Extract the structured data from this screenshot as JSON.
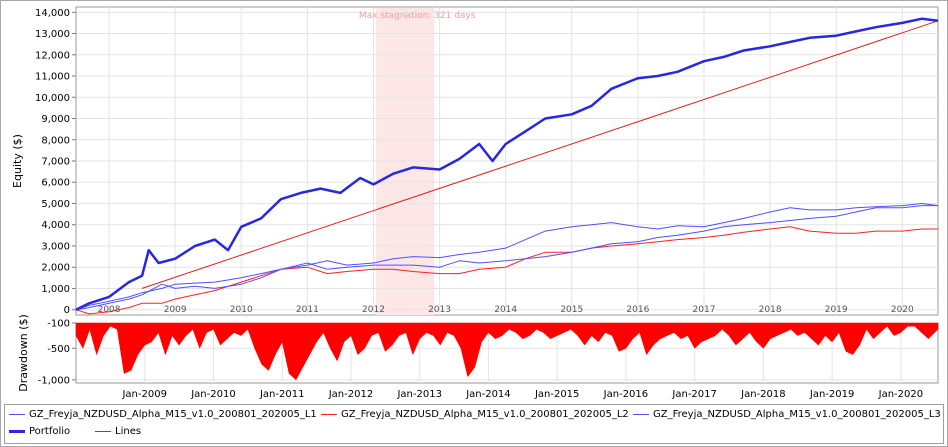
{
  "chart_data": [
    {
      "type": "line",
      "ylabel": "Equity ($)",
      "ylim": [
        -250,
        14250
      ],
      "yticks": [
        0,
        1000,
        2000,
        3000,
        4000,
        5000,
        6000,
        7000,
        8000,
        9000,
        10000,
        11000,
        12000,
        13000,
        14000
      ],
      "ytick_labels": [
        "0",
        "1,000",
        "2,000",
        "3,000",
        "4,000",
        "5,000",
        "6,000",
        "7,000",
        "8,000",
        "9,000",
        "10,000",
        "11,000",
        "12,000",
        "13,000",
        "14,000"
      ],
      "xlim": [
        2007.5,
        2020.54
      ],
      "xticks": [
        2008,
        2009,
        2010,
        2011,
        2012,
        2013,
        2014,
        2015,
        2016,
        2017,
        2018,
        2019,
        2020
      ],
      "xtick_labels": [
        "2008",
        "2009",
        "2010",
        "2011",
        "2012",
        "2013",
        "2014",
        "2015",
        "2016",
        "2017",
        "2018",
        "2019",
        "2020"
      ],
      "grid": true,
      "annotation": "Max stagnation: 321 days",
      "stagnation_range": [
        2012.04,
        2012.92
      ],
      "series": [
        {
          "name": "GZ_Freyja_NZDUSD_Alpha_M15_v1.0_200801_202005_L1",
          "color": "#5050ff",
          "width": 1,
          "x": [
            2007.5,
            2007.7,
            2008.0,
            2008.3,
            2008.5,
            2008.8,
            2009.0,
            2009.3,
            2009.6,
            2010.0,
            2010.3,
            2010.6,
            2011.0,
            2011.3,
            2011.6,
            2012.0,
            2012.3,
            2012.6,
            2013.0,
            2013.3,
            2013.6,
            2014.0,
            2014.3,
            2014.6,
            2015.0,
            2015.3,
            2015.6,
            2016.0,
            2016.3,
            2016.6,
            2017.0,
            2017.3,
            2017.6,
            2018.0,
            2018.3,
            2018.6,
            2019.0,
            2019.3,
            2019.6,
            2020.0,
            2020.3,
            2020.54
          ],
          "y": [
            0,
            200,
            400,
            600,
            800,
            1000,
            1200,
            1250,
            1300,
            1500,
            1700,
            1900,
            2100,
            2300,
            2100,
            2200,
            2400,
            2500,
            2450,
            2600,
            2700,
            2900,
            3300,
            3700,
            3900,
            4000,
            4100,
            3900,
            3800,
            3950,
            3900,
            4100,
            4300,
            4600,
            4800,
            4700,
            4700,
            4800,
            4850,
            4900,
            5000,
            4900
          ]
        },
        {
          "name": "GZ_Freyja_NZDUSD_Alpha_M15_v1.0_200801_202005_L2",
          "color": "#ff2020",
          "width": 1,
          "x": [
            2007.5,
            2007.7,
            2008.0,
            2008.3,
            2008.5,
            2008.8,
            2009.0,
            2009.3,
            2009.6,
            2010.0,
            2010.3,
            2010.6,
            2011.0,
            2011.3,
            2011.6,
            2012.0,
            2012.3,
            2012.6,
            2013.0,
            2013.3,
            2013.6,
            2014.0,
            2014.3,
            2014.6,
            2015.0,
            2015.3,
            2015.6,
            2016.0,
            2016.3,
            2016.6,
            2017.0,
            2017.3,
            2017.6,
            2018.0,
            2018.3,
            2018.6,
            2019.0,
            2019.3,
            2019.6,
            2020.0,
            2020.3,
            2020.54
          ],
          "y": [
            0,
            -200,
            -100,
            100,
            300,
            300,
            500,
            700,
            900,
            1300,
            1600,
            1900,
            2000,
            1700,
            1800,
            1900,
            1900,
            1800,
            1700,
            1700,
            1900,
            2000,
            2400,
            2700,
            2700,
            2900,
            3000,
            3100,
            3200,
            3300,
            3400,
            3500,
            3650,
            3800,
            3900,
            3700,
            3600,
            3600,
            3700,
            3700,
            3800,
            3800
          ]
        },
        {
          "name": "GZ_Freyja_NZDUSD_Alpha_M15_v1.0_200801_202005_L3",
          "color": "#5050ff",
          "width": 1,
          "x": [
            2007.5,
            2007.7,
            2008.0,
            2008.3,
            2008.5,
            2008.8,
            2009.0,
            2009.3,
            2009.6,
            2010.0,
            2010.3,
            2010.6,
            2011.0,
            2011.3,
            2011.6,
            2012.0,
            2012.3,
            2012.6,
            2013.0,
            2013.3,
            2013.6,
            2014.0,
            2014.3,
            2014.6,
            2015.0,
            2015.3,
            2015.6,
            2016.0,
            2016.3,
            2016.6,
            2017.0,
            2017.3,
            2017.6,
            2018.0,
            2018.3,
            2018.6,
            2019.0,
            2019.3,
            2019.6,
            2020.0,
            2020.3,
            2020.54
          ],
          "y": [
            0,
            100,
            300,
            500,
            700,
            1200,
            1000,
            1100,
            1000,
            1200,
            1500,
            1900,
            2200,
            1900,
            2000,
            2100,
            2100,
            2100,
            2000,
            2300,
            2200,
            2300,
            2400,
            2500,
            2700,
            2900,
            3100,
            3200,
            3400,
            3500,
            3700,
            3900,
            4000,
            4100,
            4200,
            4300,
            4400,
            4600,
            4800,
            4800,
            4900,
            4900
          ]
        },
        {
          "name": "Portfolio",
          "color": "#2828e0",
          "width": 2.5,
          "x": [
            2007.5,
            2007.7,
            2008.0,
            2008.3,
            2008.5,
            2008.6,
            2008.75,
            2009.0,
            2009.3,
            2009.6,
            2009.8,
            2010.0,
            2010.3,
            2010.6,
            2010.9,
            2011.2,
            2011.5,
            2011.8,
            2012.0,
            2012.3,
            2012.6,
            2013.0,
            2013.3,
            2013.6,
            2013.8,
            2014.0,
            2014.3,
            2014.6,
            2015.0,
            2015.3,
            2015.6,
            2016.0,
            2016.3,
            2016.6,
            2017.0,
            2017.3,
            2017.6,
            2018.0,
            2018.3,
            2018.6,
            2019.0,
            2019.3,
            2019.6,
            2020.0,
            2020.3,
            2020.54
          ],
          "y": [
            0,
            300,
            600,
            1300,
            1600,
            2800,
            2200,
            2400,
            3000,
            3300,
            2800,
            3900,
            4300,
            5200,
            5500,
            5700,
            5500,
            6200,
            5900,
            6400,
            6700,
            6600,
            7100,
            7800,
            7000,
            7800,
            8400,
            9000,
            9200,
            9600,
            10400,
            10900,
            11000,
            11200,
            11700,
            11900,
            12200,
            12400,
            12600,
            12800,
            12900,
            13100,
            13300,
            13500,
            13700,
            13600
          ]
        },
        {
          "name": "Lines",
          "color": "#e02020",
          "width": 1,
          "x": [
            2008.5,
            2020.54
          ],
          "y": [
            1000,
            13600
          ]
        }
      ]
    },
    {
      "type": "area",
      "ylabel": "Drawdown ($)",
      "ylim": [
        -1050,
        -100
      ],
      "yticks": [
        -1000,
        -500,
        -100
      ],
      "ytick_labels": [
        "-1,000",
        "-500",
        "-100"
      ],
      "xlim": [
        2008.0,
        2020.54
      ],
      "xtick_labels": [
        "Jan-2009",
        "Jan-2010",
        "Jan-2011",
        "Jan-2012",
        "Jan-2013",
        "Jan-2014",
        "Jan-2015",
        "Jan-2016",
        "Jan-2017",
        "Jan-2018",
        "Jan-2019",
        "Jan-2020"
      ],
      "xticks": [
        2009,
        2010,
        2011,
        2012,
        2013,
        2014,
        2015,
        2016,
        2017,
        2018,
        2019,
        2020
      ],
      "color": "#ff0000",
      "x": [
        2008.0,
        2008.1,
        2008.2,
        2008.3,
        2008.4,
        2008.5,
        2008.6,
        2008.7,
        2008.8,
        2008.9,
        2009.0,
        2009.1,
        2009.2,
        2009.3,
        2009.4,
        2009.5,
        2009.6,
        2009.7,
        2009.8,
        2009.9,
        2010.0,
        2010.1,
        2010.2,
        2010.3,
        2010.4,
        2010.5,
        2010.6,
        2010.7,
        2010.8,
        2010.9,
        2011.0,
        2011.1,
        2011.2,
        2011.3,
        2011.4,
        2011.5,
        2011.6,
        2011.7,
        2011.8,
        2011.9,
        2012.0,
        2012.1,
        2012.2,
        2012.3,
        2012.4,
        2012.5,
        2012.6,
        2012.7,
        2012.8,
        2012.9,
        2013.0,
        2013.1,
        2013.2,
        2013.3,
        2013.4,
        2013.5,
        2013.6,
        2013.7,
        2013.8,
        2013.9,
        2014.0,
        2014.1,
        2014.2,
        2014.3,
        2014.4,
        2014.5,
        2014.6,
        2014.7,
        2014.8,
        2014.9,
        2015.0,
        2015.1,
        2015.2,
        2015.3,
        2015.4,
        2015.5,
        2015.6,
        2015.7,
        2015.8,
        2015.9,
        2016.0,
        2016.1,
        2016.2,
        2016.3,
        2016.4,
        2016.5,
        2016.6,
        2016.7,
        2016.8,
        2016.9,
        2017.0,
        2017.1,
        2017.2,
        2017.3,
        2017.4,
        2017.5,
        2017.6,
        2017.7,
        2017.8,
        2017.9,
        2018.0,
        2018.1,
        2018.2,
        2018.3,
        2018.4,
        2018.5,
        2018.6,
        2018.7,
        2018.8,
        2018.9,
        2019.0,
        2019.1,
        2019.2,
        2019.3,
        2019.4,
        2019.5,
        2019.6,
        2019.7,
        2019.8,
        2019.9,
        2020.0,
        2020.1,
        2020.2,
        2020.3,
        2020.4,
        2020.54
      ],
      "y": [
        -300,
        -500,
        -200,
        -600,
        -300,
        -150,
        -200,
        -900,
        -850,
        -600,
        -450,
        -400,
        -250,
        -600,
        -300,
        -450,
        -300,
        -200,
        -500,
        -250,
        -200,
        -450,
        -350,
        -250,
        -300,
        -200,
        -500,
        -750,
        -850,
        -600,
        -400,
        -900,
        -1000,
        -800,
        -600,
        -400,
        -250,
        -500,
        -700,
        -400,
        -300,
        -600,
        -500,
        -300,
        -250,
        -550,
        -450,
        -300,
        -250,
        -600,
        -350,
        -250,
        -300,
        -450,
        -250,
        -300,
        -500,
        -950,
        -800,
        -400,
        -250,
        -350,
        -300,
        -200,
        -250,
        -350,
        -300,
        -200,
        -250,
        -350,
        -300,
        -250,
        -200,
        -300,
        -450,
        -300,
        -400,
        -250,
        -300,
        -550,
        -500,
        -350,
        -250,
        -600,
        -450,
        -350,
        -300,
        -250,
        -350,
        -300,
        -500,
        -400,
        -350,
        -300,
        -200,
        -300,
        -450,
        -350,
        -250,
        -400,
        -500,
        -350,
        -300,
        -250,
        -200,
        -300,
        -250,
        -350,
        -450,
        -300,
        -400,
        -250,
        -550,
        -600,
        -450,
        -200,
        -350,
        -250,
        -150,
        -300,
        -250,
        -150,
        -150,
        -250,
        -350,
        -200
      ]
    }
  ]
}
